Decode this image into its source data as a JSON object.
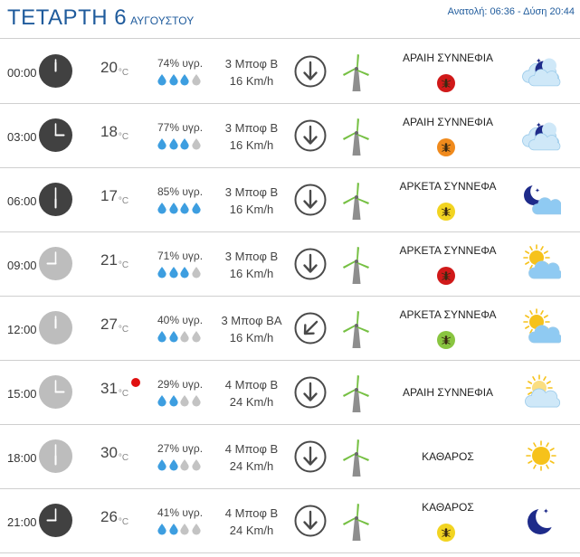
{
  "header": {
    "day": "ΤΕΤΑΡΤΗ 6",
    "month": "ΑΥΓΟΥΣΤΟΥ",
    "sun": "Ανατολή: 06:36  - Δύση 20:44"
  },
  "temp_unit": "°C",
  "rows": [
    {
      "time": "00:00",
      "temp": "20",
      "hum": "74% υγρ.",
      "drops": 3,
      "wind": "3 Μποφ Β",
      "speed": "16 Km/h",
      "dir": "N",
      "cond": "ΑΡΑΙΗ ΣΥΝΝΕΦΙΑ",
      "badge": "red",
      "icon": "cloud-night-icon",
      "clock": "dark"
    },
    {
      "time": "03:00",
      "temp": "18",
      "hum": "77% υγρ.",
      "drops": 3,
      "wind": "3 Μποφ Β",
      "speed": "16 Km/h",
      "dir": "N",
      "cond": "ΑΡΑΙΗ ΣΥΝΝΕΦΙΑ",
      "badge": "orange",
      "icon": "cloud-night-icon",
      "clock": "dark"
    },
    {
      "time": "06:00",
      "temp": "17",
      "hum": "85% υγρ.",
      "drops": 4,
      "wind": "3 Μποφ Β",
      "speed": "16 Km/h",
      "dir": "N",
      "cond": "ΑΡΚΕΤΑ ΣΥΝΝΕΦΑ",
      "badge": "yellow",
      "icon": "moon-cloud-icon",
      "clock": "dark"
    },
    {
      "time": "09:00",
      "temp": "21",
      "hum": "71% υγρ.",
      "drops": 3,
      "wind": "3 Μποφ Β",
      "speed": "16 Km/h",
      "dir": "N",
      "cond": "ΑΡΚΕΤΑ ΣΥΝΝΕΦΑ",
      "badge": "red",
      "icon": "sun-cloud-icon",
      "clock": "light"
    },
    {
      "time": "12:00",
      "temp": "27",
      "hum": "40% υγρ.",
      "drops": 2,
      "wind": "3 Μποφ ΒΑ",
      "speed": "16 Km/h",
      "dir": "NE",
      "cond": "ΑΡΚΕΤΑ ΣΥΝΝΕΦΑ",
      "badge": "green",
      "icon": "sun-cloud-icon",
      "clock": "light"
    },
    {
      "time": "15:00",
      "temp": "31",
      "hum": "29% υγρ.",
      "drops": 2,
      "wind": "4 Μποφ Β",
      "speed": "24 Km/h",
      "dir": "N",
      "cond": "ΑΡΑΙΗ ΣΥΝΝΕΦΙΑ",
      "badge": "",
      "icon": "sun-light-cloud-icon",
      "clock": "light"
    },
    {
      "time": "18:00",
      "temp": "30",
      "hum": "27% υγρ.",
      "drops": 2,
      "wind": "4 Μποφ Β",
      "speed": "24 Km/h",
      "dir": "N",
      "cond": "ΚΑΘΑΡΟΣ",
      "badge": "",
      "icon": "sun-icon",
      "clock": "light"
    },
    {
      "time": "21:00",
      "temp": "26",
      "hum": "41% υγρ.",
      "drops": 2,
      "wind": "4 Μποφ Β",
      "speed": "24 Km/h",
      "dir": "N",
      "cond": "ΚΑΘΑΡΟΣ",
      "badge": "yellow",
      "icon": "moon-icon",
      "clock": "dark"
    }
  ],
  "colors": {
    "title": "#1f5b9c",
    "drop_on": "#3d9ee0",
    "drop_off": "#c3c3c3",
    "turbine": "#76c043",
    "alert": "#e01010"
  }
}
